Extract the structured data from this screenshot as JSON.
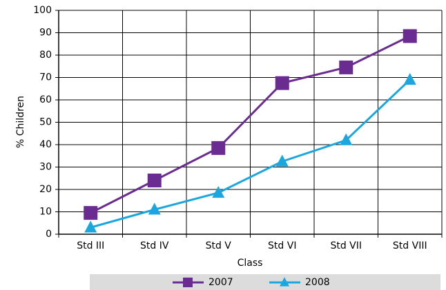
{
  "chart_data": {
    "type": "line",
    "x_label": "Class",
    "y_label": "% Children",
    "categories": [
      "Std III",
      "Std IV",
      "Std V",
      "Std VI",
      "Std VII",
      "Std VIII"
    ],
    "series": [
      {
        "name": "2007",
        "color": "#6a2c91",
        "marker": "square",
        "values": [
          9.5,
          24,
          38.5,
          67.5,
          74.5,
          88.5
        ]
      },
      {
        "name": "2008",
        "color": "#1aa7e0",
        "marker": "triangle",
        "values": [
          3,
          11,
          18.5,
          32.5,
          42,
          69
        ]
      }
    ],
    "ylim": [
      0,
      100
    ],
    "yticks": [
      0,
      10,
      20,
      30,
      40,
      50,
      60,
      70,
      80,
      90,
      100
    ],
    "grid": true
  }
}
